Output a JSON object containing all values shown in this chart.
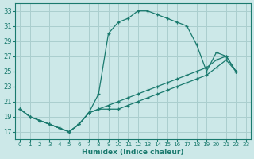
{
  "xlabel": "Humidex (Indice chaleur)",
  "background_color": "#cce8e8",
  "grid_color": "#aacece",
  "line_color": "#1a7a6e",
  "xlim": [
    -0.5,
    23.5
  ],
  "ylim": [
    16,
    34
  ],
  "yticks": [
    17,
    19,
    21,
    23,
    25,
    27,
    29,
    31,
    33
  ],
  "xticks": [
    0,
    1,
    2,
    3,
    4,
    5,
    6,
    7,
    8,
    9,
    10,
    11,
    12,
    13,
    14,
    15,
    16,
    17,
    18,
    19,
    20,
    21,
    22,
    23
  ],
  "line1_x": [
    0,
    1,
    2,
    3,
    4,
    5,
    6,
    7,
    8,
    9,
    10,
    11,
    12,
    13,
    14,
    15,
    16,
    17,
    18,
    19,
    20,
    21,
    22
  ],
  "line1_y": [
    20.0,
    19.0,
    18.5,
    18.0,
    17.5,
    17.0,
    18.0,
    19.5,
    22.0,
    30.0,
    31.5,
    32.0,
    33.0,
    33.0,
    32.5,
    32.0,
    31.5,
    31.0,
    28.5,
    25.0,
    27.5,
    27.0,
    25.0
  ],
  "line2_x": [
    0,
    1,
    2,
    3,
    4,
    5,
    6,
    7,
    8,
    9,
    10,
    11,
    12,
    13,
    14,
    15,
    16,
    17,
    18,
    19,
    20,
    21,
    22
  ],
  "line2_y": [
    20.0,
    19.0,
    18.5,
    18.0,
    17.5,
    17.0,
    18.0,
    19.5,
    20.0,
    20.0,
    20.0,
    20.5,
    21.0,
    21.5,
    22.0,
    22.5,
    23.0,
    23.5,
    24.0,
    24.5,
    25.5,
    26.5,
    25.0
  ],
  "line3_x": [
    0,
    1,
    2,
    3,
    4,
    5,
    6,
    7,
    8,
    9,
    10,
    11,
    12,
    13,
    14,
    15,
    16,
    17,
    18,
    19,
    20,
    21,
    22
  ],
  "line3_y": [
    20.0,
    19.0,
    18.5,
    18.0,
    17.5,
    17.0,
    18.0,
    19.5,
    20.0,
    20.5,
    21.0,
    21.5,
    22.0,
    22.5,
    23.0,
    23.5,
    24.0,
    24.5,
    25.0,
    25.5,
    26.5,
    27.0,
    25.0
  ]
}
